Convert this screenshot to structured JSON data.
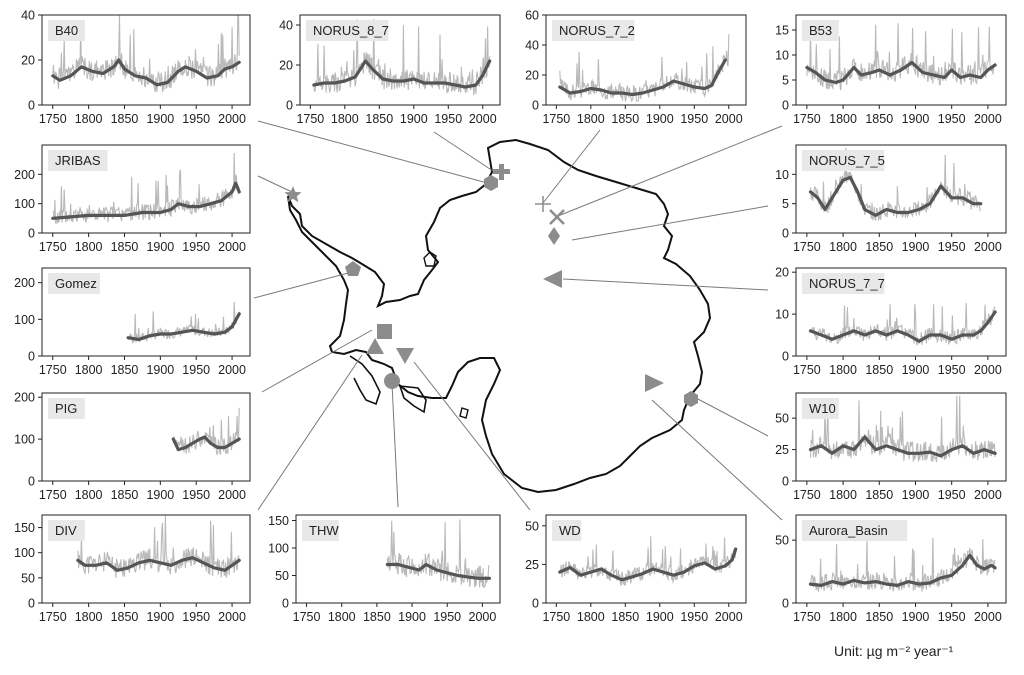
{
  "chart_data": [
    {
      "type": "line",
      "label": "B40",
      "ylim": [
        0,
        40
      ],
      "yticks": [
        0,
        20,
        40
      ],
      "xlim": [
        1735,
        2025
      ],
      "xticks": [
        1750,
        1800,
        1850,
        1900,
        1950,
        2000
      ],
      "start": 1750,
      "end": 2010,
      "smooth": [
        [
          1750,
          13
        ],
        [
          1760,
          11
        ],
        [
          1775,
          13
        ],
        [
          1790,
          17
        ],
        [
          1805,
          15
        ],
        [
          1820,
          14
        ],
        [
          1835,
          17
        ],
        [
          1842,
          20
        ],
        [
          1850,
          16
        ],
        [
          1865,
          13
        ],
        [
          1880,
          12
        ],
        [
          1895,
          9
        ],
        [
          1910,
          10
        ],
        [
          1925,
          15
        ],
        [
          1935,
          17
        ],
        [
          1950,
          15
        ],
        [
          1965,
          12
        ],
        [
          1980,
          13
        ],
        [
          1990,
          16
        ],
        [
          2000,
          17
        ],
        [
          2010,
          19
        ]
      ],
      "raw_amp": 7
    },
    {
      "type": "line",
      "label": "NORUS_8_7",
      "ylim": [
        0,
        45
      ],
      "yticks": [
        0,
        20,
        40
      ],
      "xlim": [
        1735,
        2025
      ],
      "xticks": [
        1750,
        1800,
        1850,
        1900,
        1950,
        2000
      ],
      "start": 1755,
      "end": 2010,
      "smooth": [
        [
          1755,
          10
        ],
        [
          1770,
          11
        ],
        [
          1785,
          11
        ],
        [
          1800,
          12
        ],
        [
          1815,
          14
        ],
        [
          1830,
          22
        ],
        [
          1840,
          18
        ],
        [
          1855,
          13
        ],
        [
          1870,
          12
        ],
        [
          1885,
          12
        ],
        [
          1900,
          13
        ],
        [
          1915,
          11
        ],
        [
          1930,
          11
        ],
        [
          1945,
          11
        ],
        [
          1960,
          10
        ],
        [
          1975,
          9
        ],
        [
          1990,
          10
        ],
        [
          2000,
          15
        ],
        [
          2010,
          22
        ]
      ],
      "raw_amp": 8
    },
    {
      "type": "line",
      "label": "NORUS_7_2",
      "ylim": [
        0,
        60
      ],
      "yticks": [
        0,
        20,
        40,
        60
      ],
      "xlim": [
        1735,
        2025
      ],
      "xticks": [
        1750,
        1800,
        1850,
        1900,
        1950,
        2000
      ],
      "start": 1755,
      "end": 2000,
      "smooth": [
        [
          1755,
          12
        ],
        [
          1770,
          8
        ],
        [
          1785,
          9
        ],
        [
          1800,
          11
        ],
        [
          1815,
          10
        ],
        [
          1830,
          8
        ],
        [
          1845,
          8
        ],
        [
          1860,
          7
        ],
        [
          1875,
          8
        ],
        [
          1890,
          10
        ],
        [
          1905,
          12
        ],
        [
          1920,
          16
        ],
        [
          1935,
          14
        ],
        [
          1950,
          12
        ],
        [
          1965,
          11
        ],
        [
          1975,
          13
        ],
        [
          1985,
          22
        ],
        [
          1995,
          30
        ]
      ],
      "raw_amp": 8
    },
    {
      "type": "line",
      "label": "B53",
      "ylim": [
        0,
        18
      ],
      "yticks": [
        0,
        5,
        10,
        15
      ],
      "xlim": [
        1735,
        2025
      ],
      "xticks": [
        1750,
        1800,
        1850,
        1900,
        1950,
        2000
      ],
      "start": 1750,
      "end": 2010,
      "smooth": [
        [
          1750,
          7.5
        ],
        [
          1762,
          6.5
        ],
        [
          1775,
          5
        ],
        [
          1790,
          4.5
        ],
        [
          1800,
          5
        ],
        [
          1815,
          7.5
        ],
        [
          1825,
          6
        ],
        [
          1840,
          6.5
        ],
        [
          1850,
          7
        ],
        [
          1865,
          6
        ],
        [
          1880,
          7
        ],
        [
          1895,
          8.5
        ],
        [
          1910,
          6.5
        ],
        [
          1925,
          6
        ],
        [
          1940,
          5.5
        ],
        [
          1950,
          7
        ],
        [
          1962,
          5.5
        ],
        [
          1975,
          6
        ],
        [
          1990,
          5.5
        ],
        [
          2000,
          7
        ],
        [
          2010,
          8
        ]
      ],
      "raw_amp": 3
    },
    {
      "type": "line",
      "label": "JRIBAS",
      "ylim": [
        0,
        300
      ],
      "yticks": [
        0,
        100,
        200
      ],
      "xlim": [
        1735,
        2025
      ],
      "xticks": [
        1750,
        1800,
        1850,
        1900,
        1950,
        2000
      ],
      "start": 1750,
      "end": 2010,
      "smooth": [
        [
          1750,
          50
        ],
        [
          1775,
          55
        ],
        [
          1800,
          60
        ],
        [
          1825,
          60
        ],
        [
          1850,
          60
        ],
        [
          1875,
          70
        ],
        [
          1900,
          70
        ],
        [
          1915,
          80
        ],
        [
          1925,
          100
        ],
        [
          1940,
          90
        ],
        [
          1955,
          90
        ],
        [
          1970,
          100
        ],
        [
          1985,
          110
        ],
        [
          2000,
          140
        ],
        [
          2005,
          170
        ],
        [
          2010,
          140
        ]
      ],
      "raw_amp": 40
    },
    {
      "type": "line",
      "label": "NORUS_7_5",
      "ylim": [
        0,
        15
      ],
      "yticks": [
        0,
        5,
        10
      ],
      "xlim": [
        1735,
        2025
      ],
      "xticks": [
        1750,
        1800,
        1850,
        1900,
        1950,
        2000
      ],
      "start": 1755,
      "end": 1990,
      "smooth": [
        [
          1755,
          7
        ],
        [
          1765,
          6
        ],
        [
          1775,
          4
        ],
        [
          1790,
          7
        ],
        [
          1800,
          9
        ],
        [
          1810,
          9.5
        ],
        [
          1820,
          7
        ],
        [
          1830,
          4
        ],
        [
          1845,
          3
        ],
        [
          1860,
          4
        ],
        [
          1875,
          3.5
        ],
        [
          1890,
          3.5
        ],
        [
          1905,
          4
        ],
        [
          1920,
          5
        ],
        [
          1935,
          8
        ],
        [
          1950,
          6
        ],
        [
          1965,
          6
        ],
        [
          1980,
          5
        ],
        [
          1990,
          5
        ]
      ],
      "raw_amp": 2
    },
    {
      "type": "line",
      "label": "Gomez",
      "ylim": [
        0,
        240
      ],
      "yticks": [
        0,
        100,
        200
      ],
      "xlim": [
        1735,
        2025
      ],
      "xticks": [
        1750,
        1800,
        1850,
        1900,
        1950,
        2000
      ],
      "start": 1855,
      "end": 2010,
      "smooth": [
        [
          1855,
          50
        ],
        [
          1870,
          45
        ],
        [
          1885,
          55
        ],
        [
          1900,
          60
        ],
        [
          1915,
          60
        ],
        [
          1930,
          65
        ],
        [
          1945,
          70
        ],
        [
          1960,
          65
        ],
        [
          1975,
          60
        ],
        [
          1990,
          65
        ],
        [
          2000,
          80
        ],
        [
          2010,
          115
        ]
      ],
      "raw_amp": 20
    },
    {
      "type": "line",
      "label": "NORUS_7_7",
      "ylim": [
        0,
        21
      ],
      "yticks": [
        0,
        10,
        20
      ],
      "xlim": [
        1735,
        2025
      ],
      "xticks": [
        1750,
        1800,
        1850,
        1900,
        1950,
        2000
      ],
      "start": 1755,
      "end": 2010,
      "smooth": [
        [
          1755,
          6
        ],
        [
          1770,
          5
        ],
        [
          1785,
          4
        ],
        [
          1800,
          5
        ],
        [
          1815,
          6
        ],
        [
          1830,
          5
        ],
        [
          1845,
          6
        ],
        [
          1860,
          5
        ],
        [
          1875,
          6
        ],
        [
          1890,
          5
        ],
        [
          1905,
          3.5
        ],
        [
          1920,
          5
        ],
        [
          1935,
          5
        ],
        [
          1950,
          4
        ],
        [
          1965,
          5
        ],
        [
          1980,
          5
        ],
        [
          1990,
          6
        ],
        [
          2000,
          8
        ],
        [
          2010,
          10.5
        ]
      ],
      "raw_amp": 2.5
    },
    {
      "type": "line",
      "label": "PIG",
      "ylim": [
        0,
        210
      ],
      "yticks": [
        0,
        100,
        200
      ],
      "xlim": [
        1735,
        2025
      ],
      "xticks": [
        1750,
        1800,
        1850,
        1900,
        1950,
        2000
      ],
      "start": 1918,
      "end": 2010,
      "smooth": [
        [
          1918,
          100
        ],
        [
          1925,
          75
        ],
        [
          1935,
          80
        ],
        [
          1945,
          90
        ],
        [
          1955,
          100
        ],
        [
          1962,
          105
        ],
        [
          1970,
          90
        ],
        [
          1980,
          80
        ],
        [
          1990,
          80
        ],
        [
          2000,
          90
        ],
        [
          2010,
          100
        ]
      ],
      "raw_amp": 30
    },
    {
      "type": "line",
      "label": "W10",
      "ylim": [
        0,
        70
      ],
      "yticks": [
        0,
        25,
        50
      ],
      "xlim": [
        1735,
        2025
      ],
      "xticks": [
        1750,
        1800,
        1850,
        1900,
        1950,
        2000
      ],
      "start": 1755,
      "end": 2010,
      "smooth": [
        [
          1755,
          25
        ],
        [
          1770,
          28
        ],
        [
          1785,
          22
        ],
        [
          1800,
          28
        ],
        [
          1815,
          25
        ],
        [
          1830,
          35
        ],
        [
          1845,
          25
        ],
        [
          1860,
          28
        ],
        [
          1875,
          25
        ],
        [
          1890,
          22
        ],
        [
          1905,
          22
        ],
        [
          1920,
          23
        ],
        [
          1935,
          20
        ],
        [
          1950,
          25
        ],
        [
          1965,
          28
        ],
        [
          1980,
          22
        ],
        [
          1995,
          25
        ],
        [
          2010,
          22
        ]
      ],
      "raw_amp": 12
    },
    {
      "type": "line",
      "label": "DIV",
      "ylim": [
        0,
        175
      ],
      "yticks": [
        0,
        50,
        100,
        150
      ],
      "xlim": [
        1735,
        2025
      ],
      "xticks": [
        1750,
        1800,
        1850,
        1900,
        1950,
        2000
      ],
      "start": 1785,
      "end": 2010,
      "smooth": [
        [
          1785,
          85
        ],
        [
          1795,
          75
        ],
        [
          1810,
          75
        ],
        [
          1825,
          80
        ],
        [
          1840,
          65
        ],
        [
          1855,
          70
        ],
        [
          1870,
          80
        ],
        [
          1885,
          85
        ],
        [
          1900,
          80
        ],
        [
          1915,
          75
        ],
        [
          1930,
          85
        ],
        [
          1945,
          90
        ],
        [
          1960,
          80
        ],
        [
          1975,
          70
        ],
        [
          1990,
          65
        ],
        [
          2000,
          75
        ],
        [
          2010,
          85
        ]
      ],
      "raw_amp": 30
    },
    {
      "type": "line",
      "label": "THW",
      "ylim": [
        0,
        160
      ],
      "yticks": [
        0,
        50,
        100,
        150
      ],
      "xlim": [
        1735,
        2025
      ],
      "xticks": [
        1750,
        1800,
        1850,
        1900,
        1950,
        2000
      ],
      "start": 1865,
      "end": 2010,
      "smooth": [
        [
          1865,
          70
        ],
        [
          1880,
          70
        ],
        [
          1895,
          65
        ],
        [
          1910,
          60
        ],
        [
          1920,
          70
        ],
        [
          1935,
          60
        ],
        [
          1950,
          55
        ],
        [
          1965,
          50
        ],
        [
          1980,
          47
        ],
        [
          1995,
          45
        ],
        [
          2010,
          45
        ]
      ],
      "raw_amp": 30
    },
    {
      "type": "line",
      "label": "WD",
      "ylim": [
        0,
        57
      ],
      "yticks": [
        0,
        25,
        50
      ],
      "xlim": [
        1735,
        2025
      ],
      "xticks": [
        1750,
        1800,
        1850,
        1900,
        1950,
        2000
      ],
      "start": 1755,
      "end": 2010,
      "smooth": [
        [
          1755,
          20
        ],
        [
          1770,
          23
        ],
        [
          1785,
          18
        ],
        [
          1800,
          20
        ],
        [
          1815,
          22
        ],
        [
          1830,
          18
        ],
        [
          1845,
          15
        ],
        [
          1860,
          17
        ],
        [
          1875,
          19
        ],
        [
          1890,
          22
        ],
        [
          1905,
          20
        ],
        [
          1920,
          18
        ],
        [
          1935,
          20
        ],
        [
          1950,
          24
        ],
        [
          1965,
          26
        ],
        [
          1980,
          22
        ],
        [
          1995,
          24
        ],
        [
          2005,
          28
        ],
        [
          2010,
          35
        ]
      ],
      "raw_amp": 7
    },
    {
      "type": "line",
      "label": "Aurora_Basin",
      "ylim": [
        0,
        70
      ],
      "yticks": [
        0,
        50
      ],
      "xlim": [
        1735,
        2025
      ],
      "xticks": [
        1750,
        1800,
        1850,
        1900,
        1950,
        2000
      ],
      "start": 1755,
      "end": 2010,
      "smooth": [
        [
          1755,
          15
        ],
        [
          1770,
          14
        ],
        [
          1785,
          17
        ],
        [
          1800,
          15
        ],
        [
          1815,
          18
        ],
        [
          1830,
          16
        ],
        [
          1845,
          17
        ],
        [
          1860,
          15
        ],
        [
          1875,
          14
        ],
        [
          1890,
          17
        ],
        [
          1905,
          15
        ],
        [
          1920,
          16
        ],
        [
          1935,
          20
        ],
        [
          1950,
          22
        ],
        [
          1965,
          30
        ],
        [
          1975,
          38
        ],
        [
          1985,
          30
        ],
        [
          1995,
          27
        ],
        [
          2005,
          30
        ],
        [
          2010,
          28
        ]
      ],
      "raw_amp": 10
    }
  ],
  "unit": "Unit: µg m⁻² year⁻¹",
  "colors": {
    "raw": "#b9b9b9",
    "smooth": "#555555",
    "marker": "#8c8c8c",
    "label_bg": "#e8e8e8",
    "axis": "#222222"
  }
}
